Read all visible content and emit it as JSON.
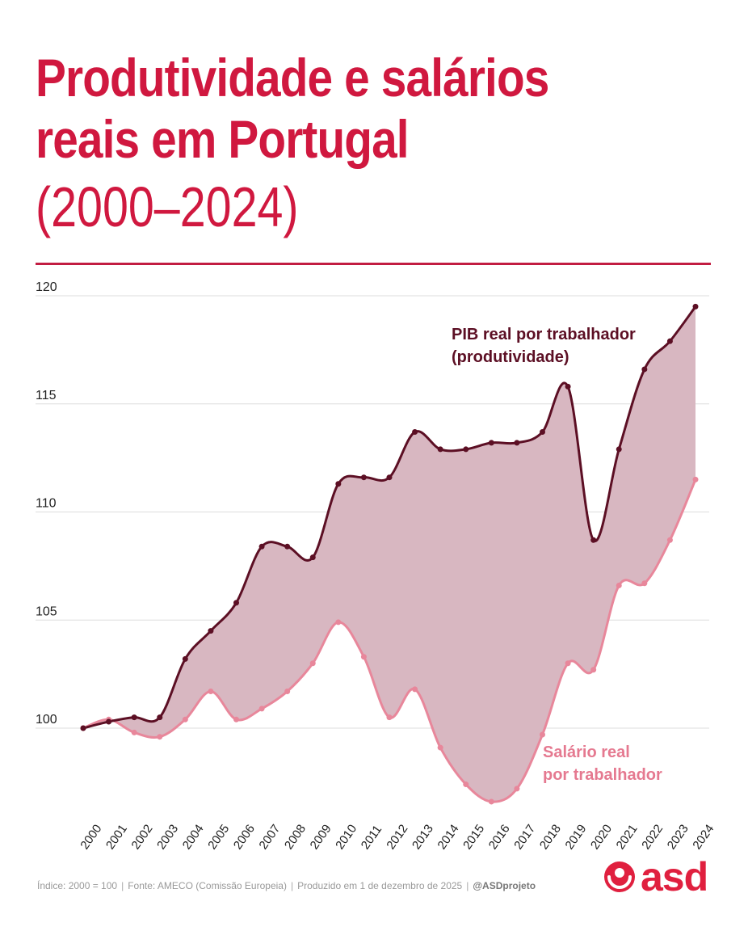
{
  "header": {
    "title_line1": "Produtividade e salários",
    "title_line2": "reais em Portugal",
    "subtitle": "(2000–2024)"
  },
  "chart_data": {
    "type": "area",
    "categories": [
      "2000",
      "2001",
      "2002",
      "2003",
      "2004",
      "2005",
      "2006",
      "2007",
      "2008",
      "2009",
      "2010",
      "2011",
      "2012",
      "2013",
      "2014",
      "2015",
      "2016",
      "2017",
      "2018",
      "2019",
      "2020",
      "2021",
      "2022",
      "2023",
      "2024"
    ],
    "series": [
      {
        "name": "PIB real por trabalhador (produtividade)",
        "label_lines": [
          "PIB real por trabalhador",
          "(produtividade)"
        ],
        "color": "#5c0f24",
        "values": [
          100.0,
          100.3,
          100.5,
          100.5,
          103.2,
          104.5,
          105.8,
          108.4,
          108.4,
          107.9,
          111.3,
          111.6,
          111.6,
          113.7,
          112.9,
          112.9,
          113.2,
          113.2,
          113.7,
          115.8,
          108.7,
          112.9,
          116.6,
          117.9,
          119.5
        ]
      },
      {
        "name": "Salário real por trabalhador",
        "label_lines": [
          "Salário real",
          "por trabalhador"
        ],
        "color": "#e8879b",
        "values": [
          100.0,
          100.4,
          99.8,
          99.6,
          100.4,
          101.7,
          100.4,
          100.9,
          101.7,
          103.0,
          104.9,
          103.3,
          100.5,
          101.8,
          99.1,
          97.4,
          96.6,
          97.2,
          99.7,
          103.0,
          102.7,
          106.6,
          106.7,
          108.7,
          111.5
        ]
      }
    ],
    "fill_color": "#d8b7c1",
    "ylim": [
      96,
      120
    ],
    "yticks": [
      100,
      105,
      110,
      115,
      120
    ],
    "grid": true,
    "xlabel": "",
    "ylabel": ""
  },
  "footer": {
    "index_note": "Índice: 2000 = 100",
    "source": "Fonte: AMECO (Comissão Europeia)",
    "produced": "Produzido em 1 de dezembro de 2025",
    "handle": "@ASDprojeto",
    "separator": "|"
  },
  "logo": {
    "text": "asd",
    "icon": "asd-logo-icon",
    "color": "#e0203f"
  }
}
